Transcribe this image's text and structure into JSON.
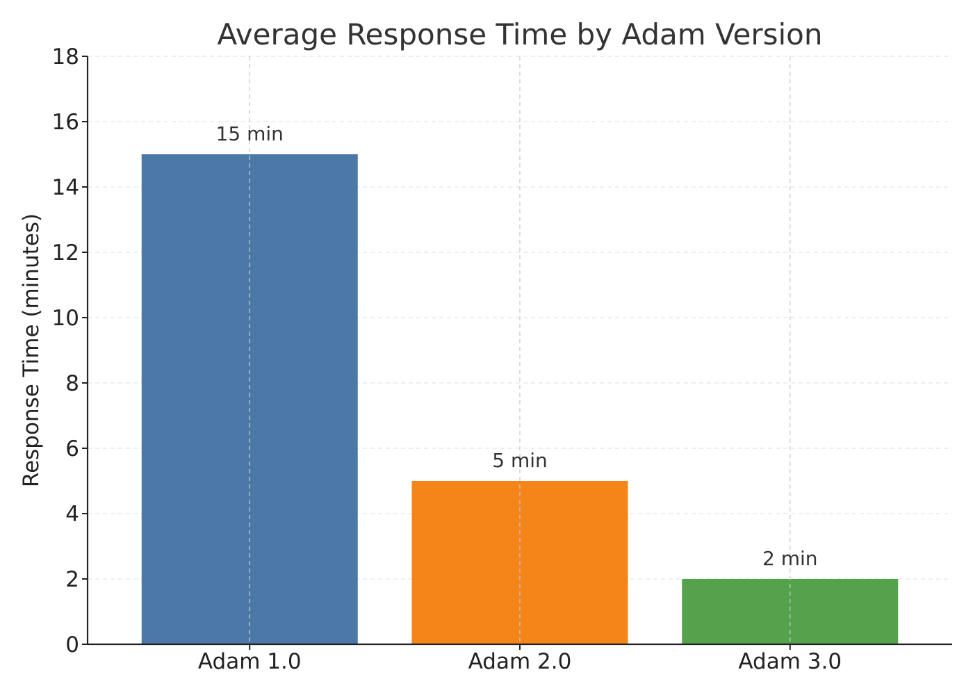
{
  "chart_data": {
    "type": "bar",
    "title": "Average Response Time by Adam Version",
    "xlabel": "",
    "ylabel": "Response Time (minutes)",
    "categories": [
      "Adam 1.0",
      "Adam 2.0",
      "Adam 3.0"
    ],
    "values": [
      15,
      5,
      2
    ],
    "data_labels": [
      "15 min",
      "5 min",
      "2 min"
    ],
    "colors": [
      "#4c78a8",
      "#f58518",
      "#54a24b"
    ],
    "ylim": [
      0,
      18
    ],
    "yticks": [
      0,
      2,
      4,
      6,
      8,
      10,
      12,
      14,
      16,
      18
    ],
    "grid": true,
    "legend": "none"
  }
}
